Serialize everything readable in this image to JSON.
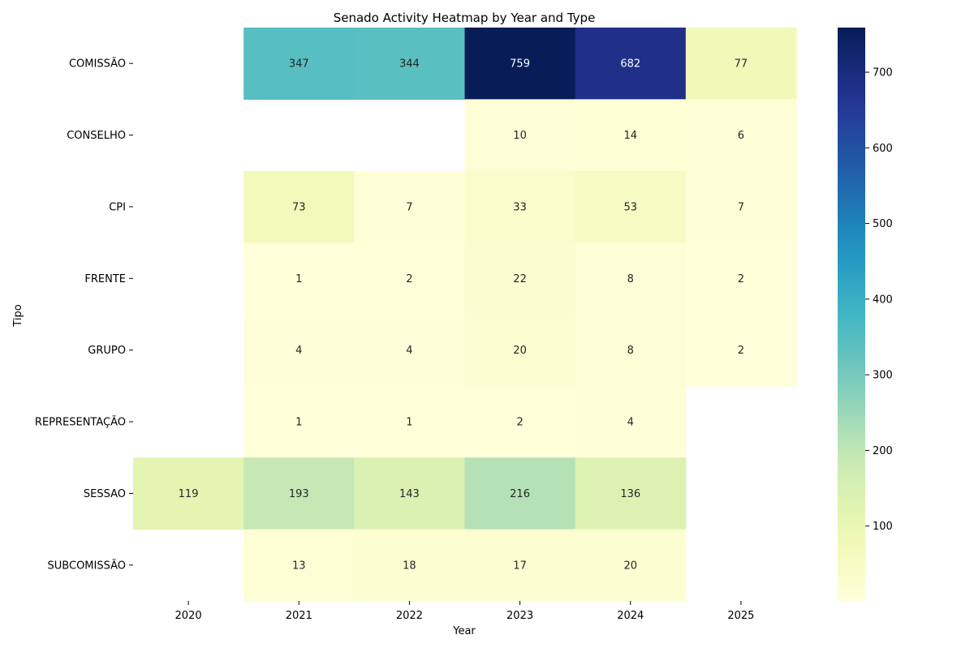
{
  "chart_data": {
    "type": "heatmap",
    "title": "Senado Activity Heatmap by Year and Type",
    "xlabel": "Year",
    "ylabel": "Tipo",
    "x": [
      "2020",
      "2021",
      "2022",
      "2023",
      "2024",
      "2025"
    ],
    "y": [
      "COMISSÃO",
      "CONSELHO",
      "CPI",
      "FRENTE",
      "GRUPO",
      "REPRESENTAÇÃO",
      "SESSAO",
      "SUBCOMISSÃO"
    ],
    "values": [
      [
        null,
        347,
        344,
        759,
        682,
        77
      ],
      [
        null,
        null,
        null,
        10,
        14,
        6
      ],
      [
        null,
        73,
        7,
        33,
        53,
        7
      ],
      [
        null,
        1,
        2,
        22,
        8,
        2
      ],
      [
        null,
        4,
        4,
        20,
        8,
        2
      ],
      [
        null,
        1,
        1,
        2,
        4,
        null
      ],
      [
        119,
        193,
        143,
        216,
        136,
        null
      ],
      [
        null,
        13,
        18,
        17,
        20,
        null
      ]
    ],
    "colormap": "YlGnBu",
    "colorbar": {
      "range": [
        1,
        759
      ],
      "ticks": [
        100,
        200,
        300,
        400,
        500,
        600,
        700
      ]
    },
    "annotations": true,
    "grid": false,
    "missing_cells": "blank"
  }
}
